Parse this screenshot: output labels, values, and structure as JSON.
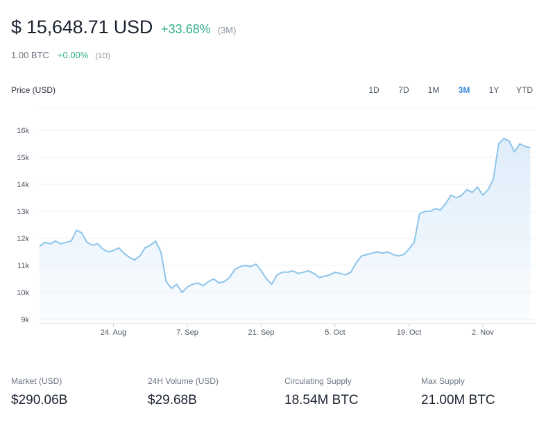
{
  "header": {
    "price": "$ 15,648.71 USD",
    "change": "+33.68%",
    "period": "(3M)",
    "btc_amount": "1.00 BTC",
    "btc_change": "+0.00%",
    "btc_period": "(1D)"
  },
  "chart_label": "Price (USD)",
  "tabs": [
    {
      "label": "1D",
      "active": false
    },
    {
      "label": "7D",
      "active": false
    },
    {
      "label": "1M",
      "active": false
    },
    {
      "label": "3M",
      "active": true
    },
    {
      "label": "1Y",
      "active": false
    },
    {
      "label": "YTD",
      "active": false
    }
  ],
  "colors": {
    "line": "#8cc4ea",
    "area": "#dcecfa",
    "positive": "#2eae8a",
    "active_tab": "#3b8ad9"
  },
  "chart_data": {
    "type": "area",
    "title": "",
    "xlabel": "",
    "ylabel": "Price (USD)",
    "ylim": [
      9000,
      16500
    ],
    "y_ticks": [
      9000,
      10000,
      11000,
      12000,
      13000,
      14000,
      15000,
      16000
    ],
    "y_tick_labels": [
      "9k",
      "10k",
      "11k",
      "12k",
      "13k",
      "14k",
      "15k",
      "16k"
    ],
    "x_ticks": [
      "2020-08-24",
      "2020-09-07",
      "2020-09-21",
      "2020-10-05",
      "2020-10-19",
      "2020-11-02"
    ],
    "x_tick_labels": [
      "24. Aug",
      "7. Sep",
      "21. Sep",
      "5. Oct",
      "19. Oct",
      "2. Nov"
    ],
    "xlim": [
      "2020-08-10",
      "2020-11-12"
    ],
    "grid": true,
    "legend": "none",
    "series": [
      {
        "name": "",
        "x": [
          "2020-08-10",
          "2020-08-11",
          "2020-08-12",
          "2020-08-13",
          "2020-08-14",
          "2020-08-15",
          "2020-08-16",
          "2020-08-17",
          "2020-08-18",
          "2020-08-19",
          "2020-08-20",
          "2020-08-21",
          "2020-08-22",
          "2020-08-23",
          "2020-08-24",
          "2020-08-25",
          "2020-08-26",
          "2020-08-27",
          "2020-08-28",
          "2020-08-29",
          "2020-08-30",
          "2020-08-31",
          "2020-09-01",
          "2020-09-02",
          "2020-09-03",
          "2020-09-04",
          "2020-09-05",
          "2020-09-06",
          "2020-09-07",
          "2020-09-08",
          "2020-09-09",
          "2020-09-10",
          "2020-09-11",
          "2020-09-12",
          "2020-09-13",
          "2020-09-14",
          "2020-09-15",
          "2020-09-16",
          "2020-09-17",
          "2020-09-18",
          "2020-09-19",
          "2020-09-20",
          "2020-09-21",
          "2020-09-22",
          "2020-09-23",
          "2020-09-24",
          "2020-09-25",
          "2020-09-26",
          "2020-09-27",
          "2020-09-28",
          "2020-09-29",
          "2020-09-30",
          "2020-10-01",
          "2020-10-02",
          "2020-10-03",
          "2020-10-04",
          "2020-10-05",
          "2020-10-06",
          "2020-10-07",
          "2020-10-08",
          "2020-10-09",
          "2020-10-10",
          "2020-10-11",
          "2020-10-12",
          "2020-10-13",
          "2020-10-14",
          "2020-10-15",
          "2020-10-16",
          "2020-10-17",
          "2020-10-18",
          "2020-10-19",
          "2020-10-20",
          "2020-10-21",
          "2020-10-22",
          "2020-10-23",
          "2020-10-24",
          "2020-10-25",
          "2020-10-26",
          "2020-10-27",
          "2020-10-28",
          "2020-10-29",
          "2020-10-30",
          "2020-10-31",
          "2020-11-01",
          "2020-11-02",
          "2020-11-03",
          "2020-11-04",
          "2020-11-05",
          "2020-11-06",
          "2020-11-07",
          "2020-11-08",
          "2020-11-09",
          "2020-11-10",
          "2020-11-11"
        ],
        "y": [
          11700,
          11850,
          11800,
          11900,
          11800,
          11850,
          11900,
          12300,
          12200,
          11850,
          11750,
          11800,
          11600,
          11500,
          11550,
          11650,
          11450,
          11300,
          11200,
          11350,
          11650,
          11750,
          11900,
          11500,
          10400,
          10150,
          10300,
          10000,
          10200,
          10300,
          10350,
          10250,
          10400,
          10500,
          10350,
          10400,
          10550,
          10850,
          10950,
          11000,
          10950,
          11050,
          10800,
          10500,
          10300,
          10650,
          10750,
          10750,
          10800,
          10700,
          10750,
          10800,
          10700,
          10550,
          10600,
          10650,
          10750,
          10700,
          10650,
          10750,
          11100,
          11350,
          11400,
          11450,
          11500,
          11450,
          11500,
          11400,
          11350,
          11400,
          11600,
          11850,
          12900,
          13000,
          13000,
          13100,
          13050,
          13300,
          13600,
          13500,
          13600,
          13800,
          13700,
          13900,
          13600,
          13800,
          14200,
          15500,
          15700,
          15600,
          15200,
          15500,
          15400,
          15350
        ]
      }
    ]
  },
  "stats": [
    {
      "label": "Market (USD)",
      "value": "$290.06B"
    },
    {
      "label": "24H Volume (USD)",
      "value": "$29.68B"
    },
    {
      "label": "Circulating Supply",
      "value": "18.54M BTC"
    },
    {
      "label": "Max Supply",
      "value": "21.00M BTC"
    }
  ]
}
